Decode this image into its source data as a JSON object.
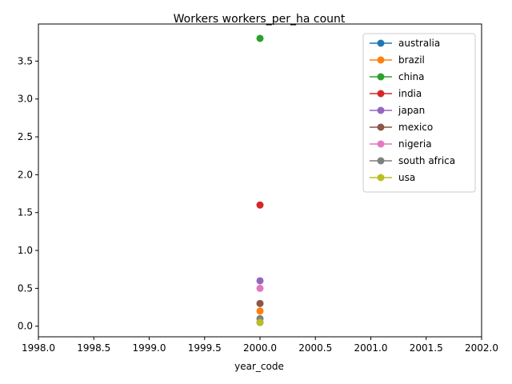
{
  "chart_data": {
    "type": "scatter",
    "title": "Workers workers_per_ha count",
    "xlabel": "year_code",
    "ylabel": "",
    "xlim": [
      1998.0,
      2002.0
    ],
    "ylim": [
      -0.14,
      3.99
    ],
    "x_ticks": [
      "1998.0",
      "1998.5",
      "1999.0",
      "1999.5",
      "2000.0",
      "2000.5",
      "2001.0",
      "2001.5",
      "2002.0"
    ],
    "x_tick_values": [
      1998.0,
      1998.5,
      1999.0,
      1999.5,
      2000.0,
      2000.5,
      2001.0,
      2001.5,
      2002.0
    ],
    "y_ticks": [
      "0.0",
      "0.5",
      "1.0",
      "1.5",
      "2.0",
      "2.5",
      "3.0",
      "3.5"
    ],
    "y_tick_values": [
      0.0,
      0.5,
      1.0,
      1.5,
      2.0,
      2.5,
      3.0,
      3.5
    ],
    "legend_position": "top-right",
    "series": [
      {
        "name": "australia",
        "color": "#1f77b4",
        "x": [
          2000
        ],
        "y": [
          0.05
        ]
      },
      {
        "name": "brazil",
        "color": "#ff7f0e",
        "x": [
          2000
        ],
        "y": [
          0.2
        ]
      },
      {
        "name": "china",
        "color": "#2ca02c",
        "x": [
          2000
        ],
        "y": [
          3.8
        ]
      },
      {
        "name": "india",
        "color": "#d62728",
        "x": [
          2000
        ],
        "y": [
          1.6
        ]
      },
      {
        "name": "japan",
        "color": "#9467bd",
        "x": [
          2000
        ],
        "y": [
          0.6
        ]
      },
      {
        "name": "mexico",
        "color": "#8c564b",
        "x": [
          2000
        ],
        "y": [
          0.3
        ]
      },
      {
        "name": "nigeria",
        "color": "#e377c2",
        "x": [
          2000
        ],
        "y": [
          0.5
        ]
      },
      {
        "name": "south africa",
        "color": "#7f7f7f",
        "x": [
          2000
        ],
        "y": [
          0.1
        ]
      },
      {
        "name": "usa",
        "color": "#bcbd22",
        "x": [
          2000
        ],
        "y": [
          0.05
        ]
      }
    ]
  }
}
